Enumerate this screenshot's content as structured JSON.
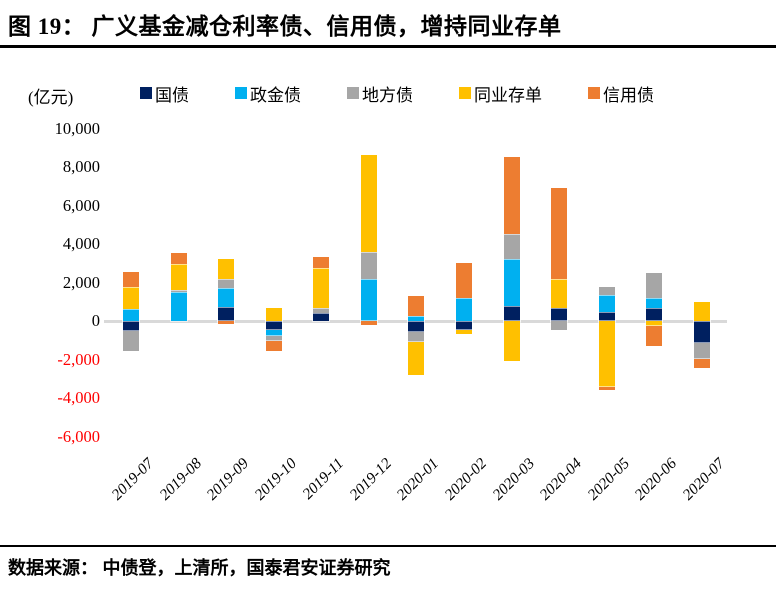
{
  "header": {
    "title": "图 19： 广义基金减仓利率债、信用债，增持同业存单"
  },
  "footer": {
    "source": "数据来源： 中债登，上清所，国泰君安证券研究"
  },
  "chart_data": {
    "type": "bar",
    "stacked": true,
    "unit_label": "(亿元)",
    "legend_position": "top",
    "grid": false,
    "categories": [
      "2019-07",
      "2019-08",
      "2019-09",
      "2019-10",
      "2019-11",
      "2019-12",
      "2020-01",
      "2020-02",
      "2020-03",
      "2020-04",
      "2020-05",
      "2020-06",
      "2020-07"
    ],
    "series": [
      {
        "name": "国债",
        "color": "#002060",
        "values": [
          -500,
          0,
          750,
          -450,
          400,
          0,
          -550,
          -450,
          800,
          700,
          450,
          700,
          -1150
        ]
      },
      {
        "name": "政金债",
        "color": "#00B0F0",
        "values": [
          600,
          1500,
          950,
          -350,
          0,
          2200,
          250,
          1200,
          2400,
          0,
          900,
          500,
          0
        ]
      },
      {
        "name": "地方债",
        "color": "#A6A6A6",
        "values": [
          -1050,
          100,
          500,
          -250,
          250,
          1400,
          -550,
          0,
          1300,
          -450,
          400,
          1300,
          -800
        ]
      },
      {
        "name": "同业存单",
        "color": "#FFC000",
        "values": [
          1150,
          1350,
          1000,
          700,
          2100,
          5000,
          -1700,
          -200,
          -2100,
          1500,
          -3450,
          -250,
          1000
        ]
      },
      {
        "name": "信用债",
        "color": "#ED7D31",
        "values": [
          800,
          600,
          -150,
          -500,
          550,
          -200,
          1050,
          1800,
          4000,
          4700,
          -150,
          -1050,
          -500
        ]
      }
    ],
    "y_ticks": [
      10000,
      8000,
      6000,
      4000,
      2000,
      0,
      -2000,
      -4000,
      -6000
    ],
    "ylim": [
      -6000,
      10000
    ],
    "colors": {
      "positive_tick": "#000000",
      "negative_tick": "#FF0000",
      "zero_line": "#D9D9D9"
    }
  }
}
